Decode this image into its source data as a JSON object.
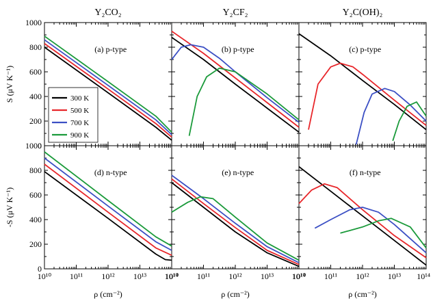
{
  "chart_data": {
    "type": "line",
    "x_axis": {
      "label": "ρ (cm⁻²)",
      "scale": "log",
      "range": [
        10000000000.0,
        100000000000000.0
      ],
      "tick_labels": [
        "10¹⁰",
        "10¹¹",
        "10¹²",
        "10¹³",
        "10¹⁴"
      ]
    },
    "column_titles": [
      "Y₂CO₂",
      "Y₂CF₂",
      "Y₂C(OH)₂"
    ],
    "row_ylabels": [
      "S (μV K⁻¹)",
      "-S (μV K⁻¹)"
    ],
    "y_ranges": [
      [
        0,
        1000
      ],
      [
        0,
        1000
      ]
    ],
    "y_tick_labels": [
      "0",
      "200",
      "400",
      "600",
      "800",
      "1000"
    ],
    "legend": {
      "placement": "panel-a-bottom-left",
      "entries": [
        "300 K",
        "500 K",
        "700 K",
        "900 K"
      ]
    },
    "series_colors": [
      "#000000",
      "#e8262a",
      "#3b4fc4",
      "#1a9a3a"
    ],
    "panels": [
      {
        "label": "(a) p-type",
        "row": 0,
        "col": 0,
        "series": [
          {
            "name": "300 K",
            "points": [
              [
                10,
                800
              ],
              [
                12,
                430
              ],
              [
                13.5,
                150
              ],
              [
                14,
                45
              ]
            ]
          },
          {
            "name": "500 K",
            "points": [
              [
                10,
                830
              ],
              [
                12,
                460
              ],
              [
                13.5,
                180
              ],
              [
                14,
                70
              ]
            ]
          },
          {
            "name": "700 K",
            "points": [
              [
                10,
                860
              ],
              [
                12,
                490
              ],
              [
                13.5,
                210
              ],
              [
                14,
                90
              ]
            ]
          },
          {
            "name": "900 K",
            "points": [
              [
                10,
                890
              ],
              [
                12,
                520
              ],
              [
                13.5,
                240
              ],
              [
                14,
                110
              ]
            ]
          }
        ]
      },
      {
        "label": "(b) p-type",
        "row": 0,
        "col": 1,
        "series": [
          {
            "name": "300 K",
            "points": [
              [
                10,
                880
              ],
              [
                11,
                700
              ],
              [
                12,
                500
              ],
              [
                13,
                305
              ],
              [
                14,
                110
              ]
            ]
          },
          {
            "name": "500 K",
            "points": [
              [
                10,
                930
              ],
              [
                11,
                750
              ],
              [
                12,
                550
              ],
              [
                13,
                350
              ],
              [
                14,
                150
              ]
            ]
          },
          {
            "name": "700 K",
            "points": [
              [
                10,
                700
              ],
              [
                10.3,
                800
              ],
              [
                10.6,
                820
              ],
              [
                11,
                800
              ],
              [
                11.5,
                710
              ],
              [
                12,
                600
              ],
              [
                13,
                390
              ],
              [
                14,
                190
              ]
            ]
          },
          {
            "name": "900 K",
            "points": [
              [
                10.55,
                80
              ],
              [
                10.8,
                400
              ],
              [
                11.1,
                560
              ],
              [
                11.5,
                630
              ],
              [
                12,
                600
              ],
              [
                13,
                420
              ],
              [
                14,
                210
              ]
            ]
          }
        ]
      },
      {
        "label": "(c) p-type",
        "row": 0,
        "col": 2,
        "series": [
          {
            "name": "300 K",
            "points": [
              [
                10,
                910
              ],
              [
                11,
                730
              ],
              [
                12,
                530
              ],
              [
                13,
                335
              ],
              [
                14,
                130
              ]
            ]
          },
          {
            "name": "500 K",
            "points": [
              [
                10.3,
                130
              ],
              [
                10.6,
                500
              ],
              [
                11,
                640
              ],
              [
                11.3,
                670
              ],
              [
                11.7,
                640
              ],
              [
                12,
                580
              ],
              [
                13,
                370
              ],
              [
                14,
                165
              ]
            ]
          },
          {
            "name": "700 K",
            "points": [
              [
                11.8,
                10
              ],
              [
                12.05,
                270
              ],
              [
                12.3,
                420
              ],
              [
                12.7,
                465
              ],
              [
                13,
                440
              ],
              [
                13.5,
                330
              ],
              [
                14,
                200
              ]
            ]
          },
          {
            "name": "900 K",
            "points": [
              [
                12.95,
                40
              ],
              [
                13.15,
                200
              ],
              [
                13.4,
                320
              ],
              [
                13.7,
                355
              ],
              [
                14,
                240
              ]
            ]
          }
        ]
      },
      {
        "label": "(d) n-type",
        "row": 1,
        "col": 0,
        "series": [
          {
            "name": "300 K",
            "points": [
              [
                10,
                790
              ],
              [
                12,
                410
              ],
              [
                13.5,
                120
              ],
              [
                13.8,
                75
              ],
              [
                14,
                70
              ]
            ]
          },
          {
            "name": "500 K",
            "points": [
              [
                10,
                850
              ],
              [
                12,
                460
              ],
              [
                13.5,
                170
              ],
              [
                14,
                110
              ]
            ]
          },
          {
            "name": "700 K",
            "points": [
              [
                10,
                900
              ],
              [
                12,
                510
              ],
              [
                13.5,
                220
              ],
              [
                14,
                150
              ]
            ]
          },
          {
            "name": "900 K",
            "points": [
              [
                10,
                950
              ],
              [
                12,
                555
              ],
              [
                13.5,
                260
              ],
              [
                14,
                185
              ]
            ]
          }
        ]
      },
      {
        "label": "(e) n-type",
        "row": 1,
        "col": 1,
        "series": [
          {
            "name": "300 K",
            "points": [
              [
                10,
                700
              ],
              [
                11,
                500
              ],
              [
                12,
                300
              ],
              [
                13,
                130
              ],
              [
                14,
                20
              ]
            ]
          },
          {
            "name": "500 K",
            "points": [
              [
                10,
                730
              ],
              [
                11,
                530
              ],
              [
                12,
                335
              ],
              [
                13,
                150
              ],
              [
                14,
                35
              ]
            ]
          },
          {
            "name": "700 K",
            "points": [
              [
                10,
                760
              ],
              [
                11,
                570
              ],
              [
                12,
                370
              ],
              [
                13,
                180
              ],
              [
                14,
                50
              ]
            ]
          },
          {
            "name": "900 K",
            "points": [
              [
                10,
                460
              ],
              [
                10.5,
                540
              ],
              [
                10.9,
                585
              ],
              [
                11.3,
                570
              ],
              [
                12,
                420
              ],
              [
                13,
                210
              ],
              [
                14,
                70
              ]
            ]
          }
        ]
      },
      {
        "label": "(f) n-type",
        "row": 1,
        "col": 2,
        "series": [
          {
            "name": "300 K",
            "points": [
              [
                10,
                830
              ],
              [
                11,
                630
              ],
              [
                12,
                430
              ],
              [
                12.5,
                330
              ],
              [
                13.5,
                130
              ],
              [
                14,
                30
              ]
            ]
          },
          {
            "name": "500 K",
            "points": [
              [
                10,
                530
              ],
              [
                10.4,
                640
              ],
              [
                10.8,
                690
              ],
              [
                11.2,
                660
              ],
              [
                12,
                480
              ],
              [
                13,
                270
              ],
              [
                14,
                90
              ]
            ]
          },
          {
            "name": "700 K",
            "points": [
              [
                10.5,
                330
              ],
              [
                11,
                400
              ],
              [
                11.6,
                480
              ],
              [
                12,
                500
              ],
              [
                12.5,
                460
              ],
              [
                13,
                360
              ],
              [
                14,
                130
              ]
            ]
          },
          {
            "name": "900 K",
            "points": [
              [
                11.3,
                290
              ],
              [
                12,
                340
              ],
              [
                12.5,
                390
              ],
              [
                12.9,
                410
              ],
              [
                13.5,
                340
              ],
              [
                14,
                170
              ]
            ]
          }
        ]
      }
    ]
  }
}
